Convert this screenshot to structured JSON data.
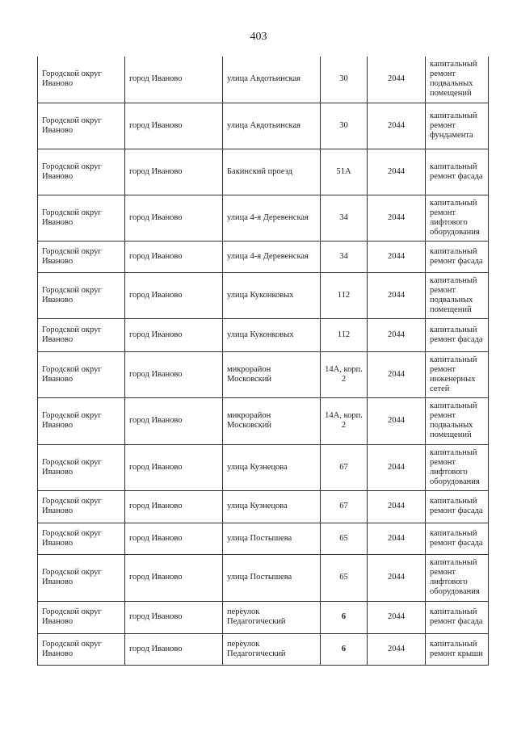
{
  "page_number": "403",
  "rows": [
    {
      "district": "Городской округ Иваново",
      "city": "город Иваново",
      "street": "улица Авдотьинская",
      "house": "30",
      "year": "2044",
      "work": "капитальный ремонт подвальных помещений"
    },
    {
      "district": "Городской округ Иваново",
      "city": "город Иваново",
      "street": "улица Авдотьинская",
      "house": "30",
      "year": "2044",
      "work": "капитальный ремонт фундамента"
    },
    {
      "district": "Городской округ Иваново",
      "city": "город Иваново",
      "street": "Бакинский проезд",
      "house": "51А",
      "year": "2044",
      "work": "капитальный ремонт фасада"
    },
    {
      "district": "Городской округ Иваново",
      "city": "город Иваново",
      "street": "улица 4-я Деревенская",
      "house": "34",
      "year": "2044",
      "work": "капитальный ремонт лифтового оборудования"
    },
    {
      "district": "Городской округ Иваново",
      "city": "город Иваново",
      "street": "улица 4-я Деревенская",
      "house": "34",
      "year": "2044",
      "work": "капитальный ремонт фасада"
    },
    {
      "district": "Городской округ Иваново",
      "city": "город Иваново",
      "street": "улица Куконковых",
      "house": "112",
      "year": "2044",
      "work": "капитальный ремонт подвальных помещений"
    },
    {
      "district": "Городской округ Иваново",
      "city": "город Иваново",
      "street": "улица Куконковых",
      "house": "112",
      "year": "2044",
      "work": "капитальный ремонт фасада"
    },
    {
      "district": "Городской округ Иваново",
      "city": "город Иваново",
      "street": "микрорайон Московский",
      "house": "14А, корп. 2",
      "year": "2044",
      "work": "капитальный ремонт инженерных сетей"
    },
    {
      "district": "Городской округ Иваново",
      "city": "город Иваново",
      "street": "микрорайон Московский",
      "house": "14А, корп. 2",
      "year": "2044",
      "work": "капитальный ремонт подвальных помещений"
    },
    {
      "district": "Городской округ Иваново",
      "city": "город Иваново",
      "street": "улица Кузнецова",
      "house": "67",
      "year": "2044",
      "work": "капитальный ремонт лифтового оборудования"
    },
    {
      "district": "Городской округ Иваново",
      "city": "город Иваново",
      "street": "улица Кузнецова",
      "house": "67",
      "year": "2044",
      "work": "капитальный ремонт фасада"
    },
    {
      "district": "Городской округ Иваново",
      "city": "город Иваново",
      "street": "улица Постышева",
      "house": "65",
      "year": "2044",
      "work": "капитальный ремонт фасада"
    },
    {
      "district": "Городской округ Иваново",
      "city": "город Иваново",
      "street": "улица Постышева",
      "house": "65",
      "year": "2044",
      "work": "капитальный ремонт лифтового оборудования"
    },
    {
      "district": "Городской округ Иваново",
      "city": "город Иваново",
      "street": "переулок Педагогический",
      "house": "6",
      "year": "2044",
      "work": "капитальный ремонт фасада"
    },
    {
      "district": "Городской округ Иваново",
      "city": "город Иваново",
      "street": "переулок Педагогический",
      "house": "6",
      "year": "2044",
      "work": "капитальный ремонт крыши"
    }
  ]
}
